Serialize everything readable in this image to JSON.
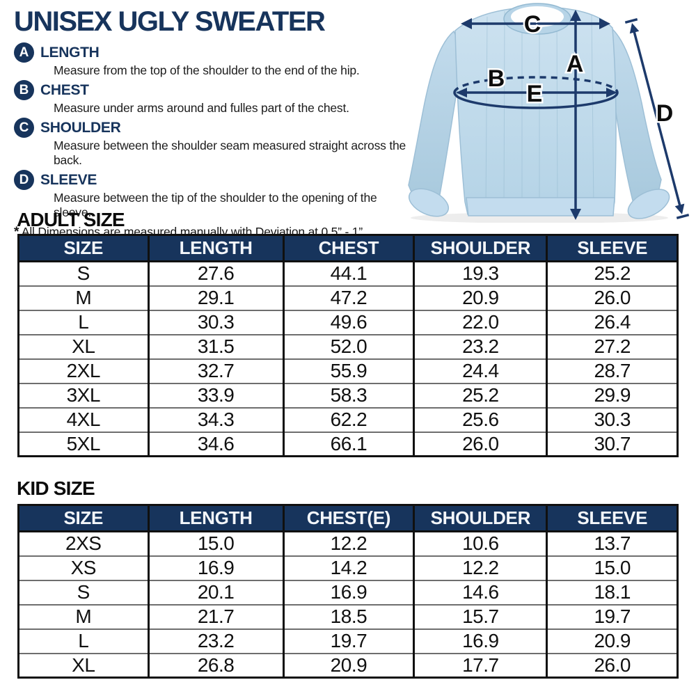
{
  "page": {
    "title": "UNISEX UGLY SWEATER",
    "note_star": "*",
    "note": " All Dimensions are measured manually with Deviation at 0.5” - 1”"
  },
  "colors": {
    "navy": "#17345c",
    "arrow": "#1d3a6b",
    "sweater_base": "#bfdaea"
  },
  "legend": {
    "items": [
      {
        "letter": "A",
        "label": "LENGTH",
        "description": "Measure from the top of the shoulder to the end of the hip."
      },
      {
        "letter": "B",
        "label": "CHEST",
        "description": "Measure under arms around and fulles part of the chest."
      },
      {
        "letter": "C",
        "label": "SHOULDER",
        "description": "Measure between the shoulder seam measured straight across the back."
      },
      {
        "letter": "D",
        "label": "SLEEVE",
        "description": "Measure between the tip of the shoulder to the opening of the sleeve."
      }
    ]
  },
  "diagram": {
    "labels": {
      "length": "A",
      "chest": "B",
      "shoulder": "C",
      "sleeve": "D",
      "width": "E"
    }
  },
  "adult": {
    "heading": "ADULT SIZE",
    "columns": [
      "SIZE",
      "LENGTH",
      "CHEST",
      "SHOULDER",
      "SLEEVE"
    ],
    "rows": [
      [
        "S",
        "27.6",
        "44.1",
        "19.3",
        "25.2"
      ],
      [
        "M",
        "29.1",
        "47.2",
        "20.9",
        "26.0"
      ],
      [
        "L",
        "30.3",
        "49.6",
        "22.0",
        "26.4"
      ],
      [
        "XL",
        "31.5",
        "52.0",
        "23.2",
        "27.2"
      ],
      [
        "2XL",
        "32.7",
        "55.9",
        "24.4",
        "28.7"
      ],
      [
        "3XL",
        "33.9",
        "58.3",
        "25.2",
        "29.9"
      ],
      [
        "4XL",
        "34.3",
        "62.2",
        "25.6",
        "30.3"
      ],
      [
        "5XL",
        "34.6",
        "66.1",
        "26.0",
        "30.7"
      ]
    ]
  },
  "kid": {
    "heading": "KID SIZE",
    "columns": [
      "SIZE",
      "LENGTH",
      "CHEST(E)",
      "SHOULDER",
      "SLEEVE"
    ],
    "rows": [
      [
        "2XS",
        "15.0",
        "12.2",
        "10.6",
        "13.7"
      ],
      [
        "XS",
        "16.9",
        "14.2",
        "12.2",
        "15.0"
      ],
      [
        "S",
        "20.1",
        "16.9",
        "14.6",
        "18.1"
      ],
      [
        "M",
        "21.7",
        "18.5",
        "15.7",
        "19.7"
      ],
      [
        "L",
        "23.2",
        "19.7",
        "16.9",
        "20.9"
      ],
      [
        "XL",
        "26.8",
        "20.9",
        "17.7",
        "26.0"
      ]
    ]
  }
}
